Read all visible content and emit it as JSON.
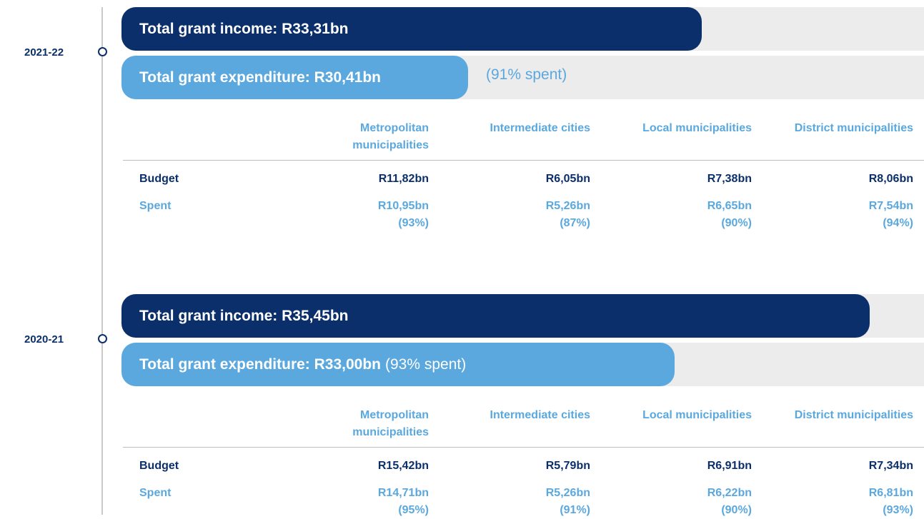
{
  "years": [
    {
      "label": "2021-22",
      "income": "Total grant income: R33,31bn",
      "expenditure": "Total grant expenditure: R30,41bn",
      "spent_note": "(91% spent)",
      "columns": [
        "Metropolitan municipalities",
        "Intermediate cities",
        "Local municipalities",
        "District municipalities"
      ],
      "budget_label": "Budget",
      "budget": [
        "R11,82bn",
        "R6,05bn",
        "R7,38bn",
        "R8,06bn"
      ],
      "spent_label": "Spent",
      "spent": [
        {
          "amount": "R10,95bn",
          "share": "(93%)"
        },
        {
          "amount": "R5,26bn",
          "share": "(87%)"
        },
        {
          "amount": "R6,65bn",
          "share": "(90%)"
        },
        {
          "amount": "R7,54bn",
          "share": "(94%)"
        }
      ]
    },
    {
      "label": "2020-21",
      "income": "Total grant income: R35,45bn",
      "expenditure": "Total grant expenditure: R33,00bn",
      "spent_note": "(93% spent)",
      "columns": [
        "Metropolitan municipalities",
        "Intermediate cities",
        "Local municipalities",
        "District municipalities"
      ],
      "budget_label": "Budget",
      "budget": [
        "R15,42bn",
        "R5,79bn",
        "R6,91bn",
        "R7,34bn"
      ],
      "spent_label": "Spent",
      "spent": [
        {
          "amount": "R14,71bn",
          "share": "(95%)"
        },
        {
          "amount": "R5,26bn",
          "share": "(91%)"
        },
        {
          "amount": "R6,22bn",
          "share": "(90%)"
        },
        {
          "amount": "R6,81bn",
          "share": "(93%)"
        }
      ]
    }
  ]
}
